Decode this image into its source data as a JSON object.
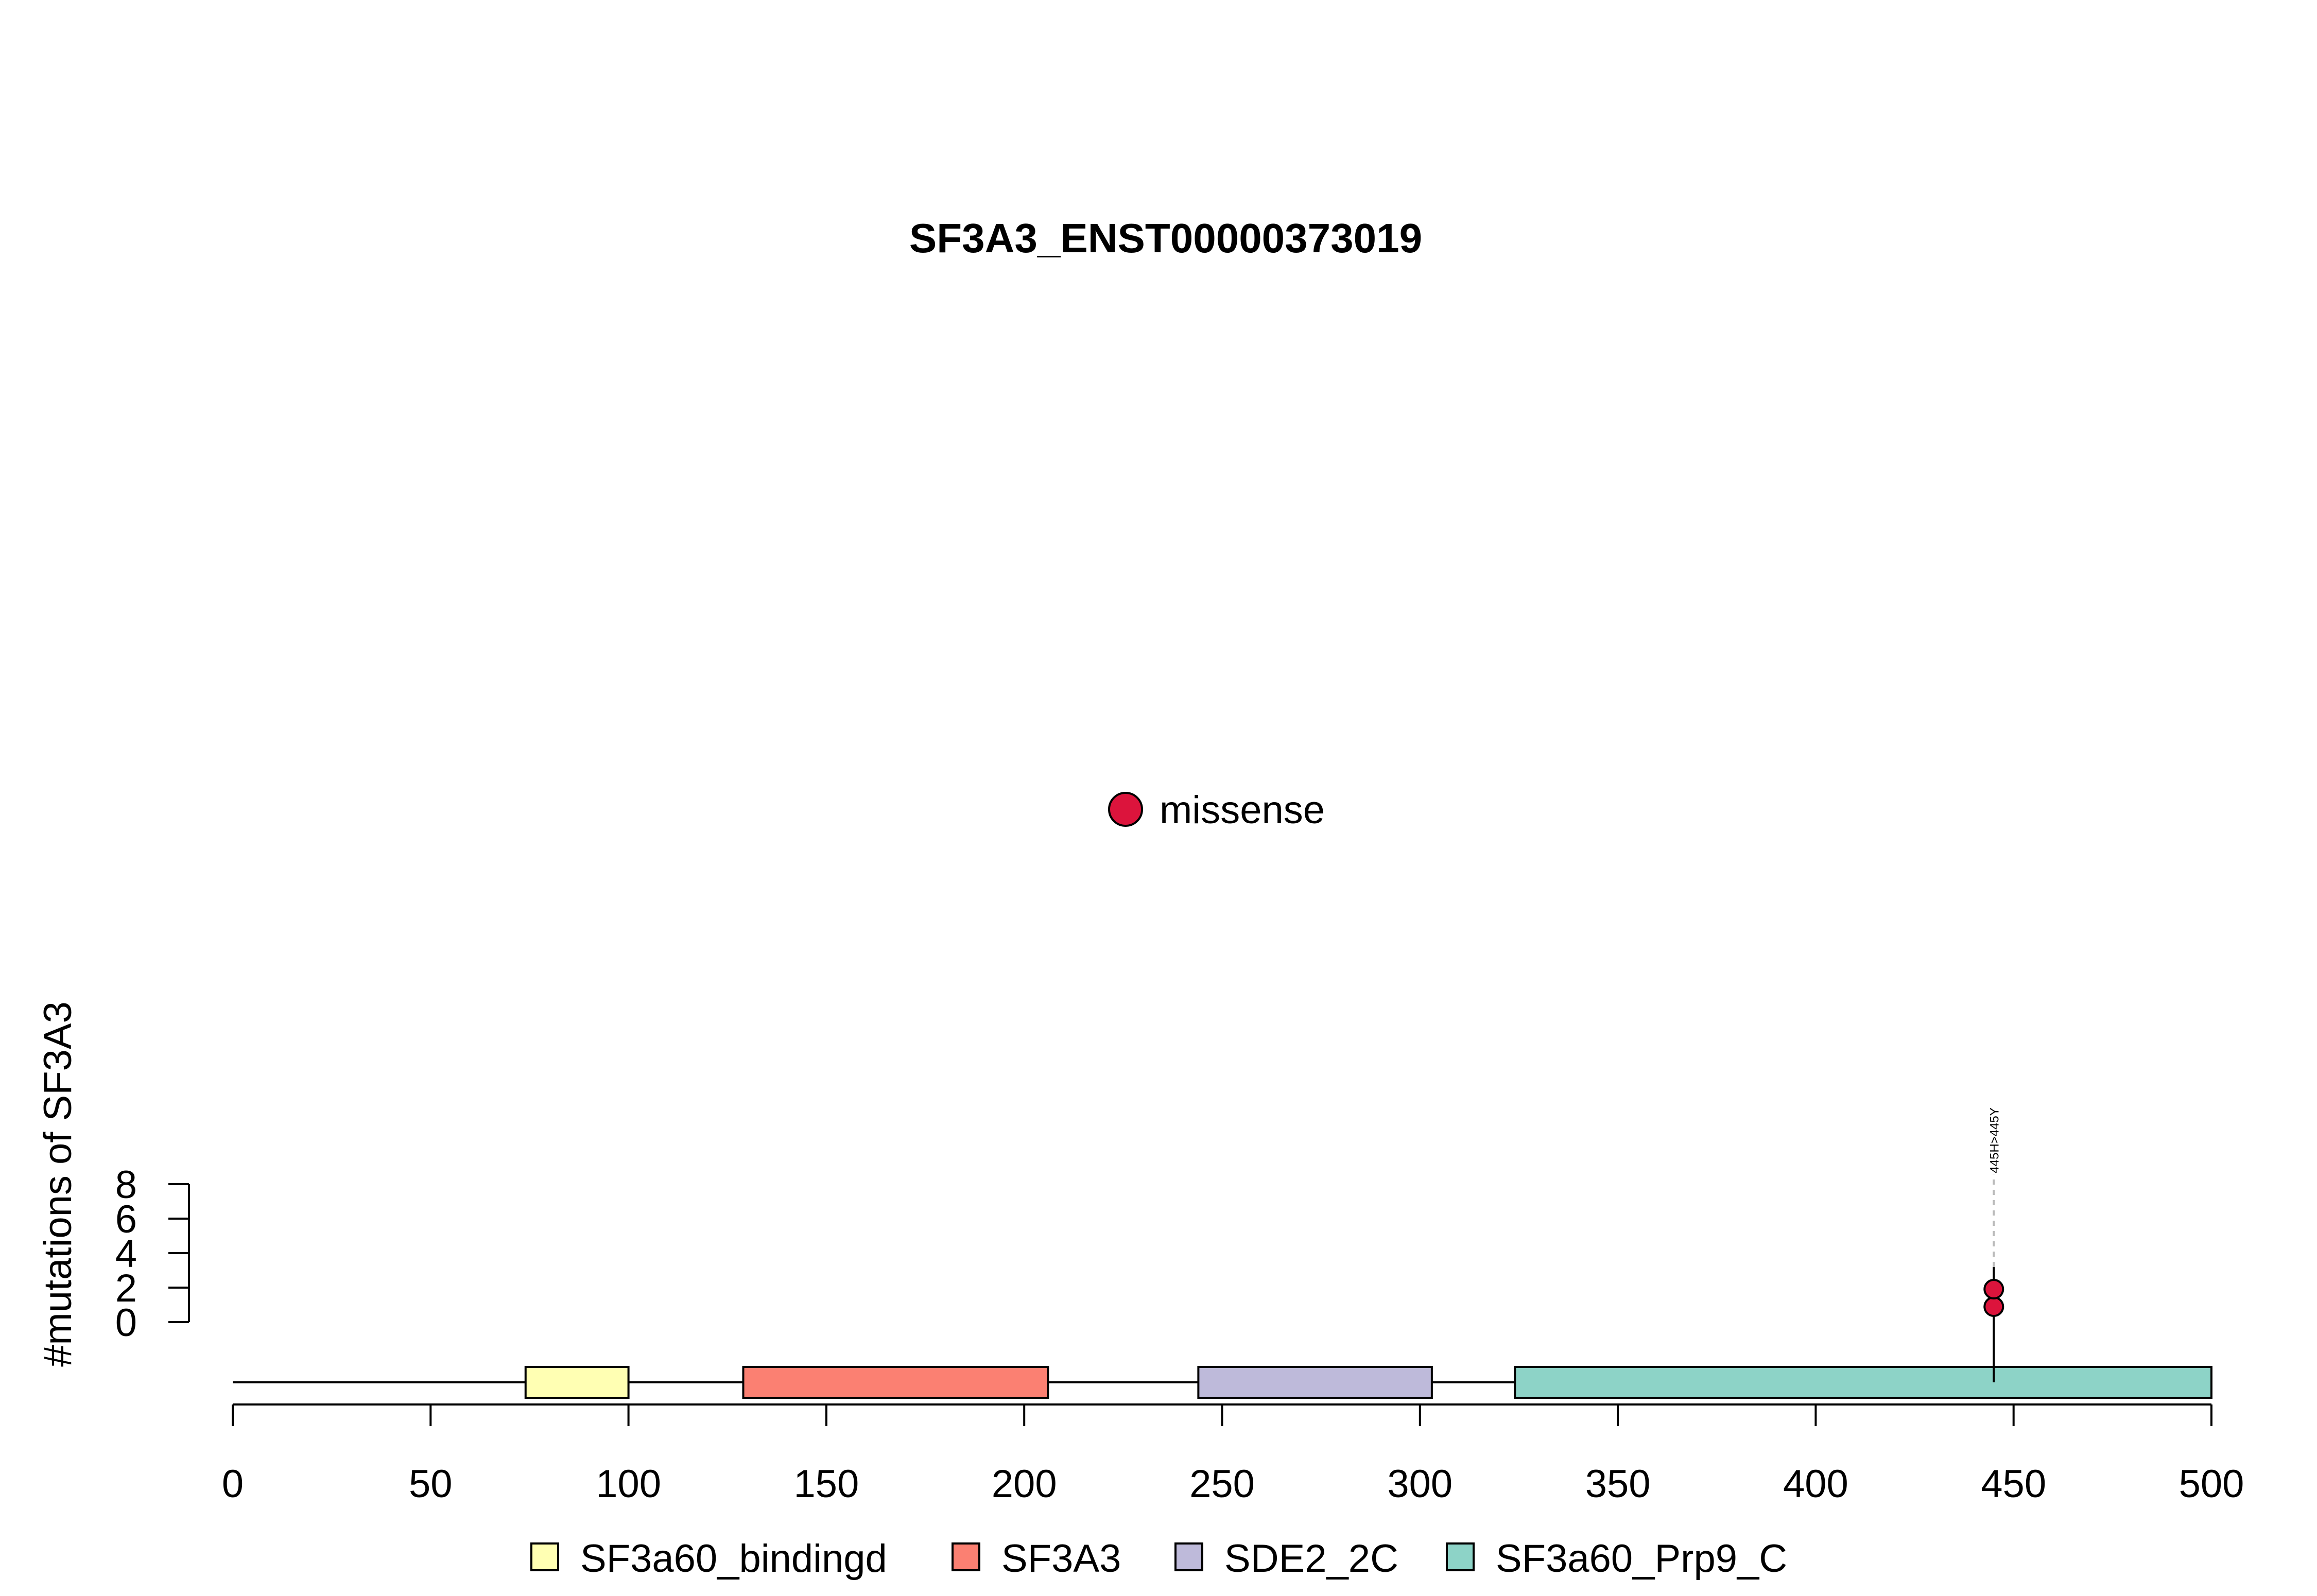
{
  "chart_data": {
    "type": "lollipop",
    "title": "SF3A3_ENST00000373019",
    "ylabel": "#mutations of SF3A3",
    "xlabel": "",
    "protein_length": 500,
    "xlim": [
      0,
      500
    ],
    "x_ticks": [
      0,
      50,
      100,
      150,
      200,
      250,
      300,
      350,
      400,
      450,
      500
    ],
    "y_ticks": [
      0,
      2,
      4,
      6,
      8
    ],
    "ylim": [
      0,
      8
    ],
    "domains": [
      {
        "name": "SF3a60_bindingd",
        "start": 74,
        "end": 100,
        "color": "#FFFFB3"
      },
      {
        "name": "SF3A3",
        "start": 129,
        "end": 206,
        "color": "#FB8072"
      },
      {
        "name": "SDE2_2C",
        "start": 244,
        "end": 303,
        "color": "#BEBADA"
      },
      {
        "name": "SF3a60_Prp9_C",
        "start": 324,
        "end": 500,
        "color": "#8DD3C7"
      }
    ],
    "mutations": [
      {
        "position": 445,
        "label": "445H>445Y",
        "count": 2,
        "type": "missense"
      }
    ],
    "mutation_legend": [
      {
        "label": "missense",
        "color": "#DC143C"
      }
    ],
    "legend_position": "bottom"
  }
}
